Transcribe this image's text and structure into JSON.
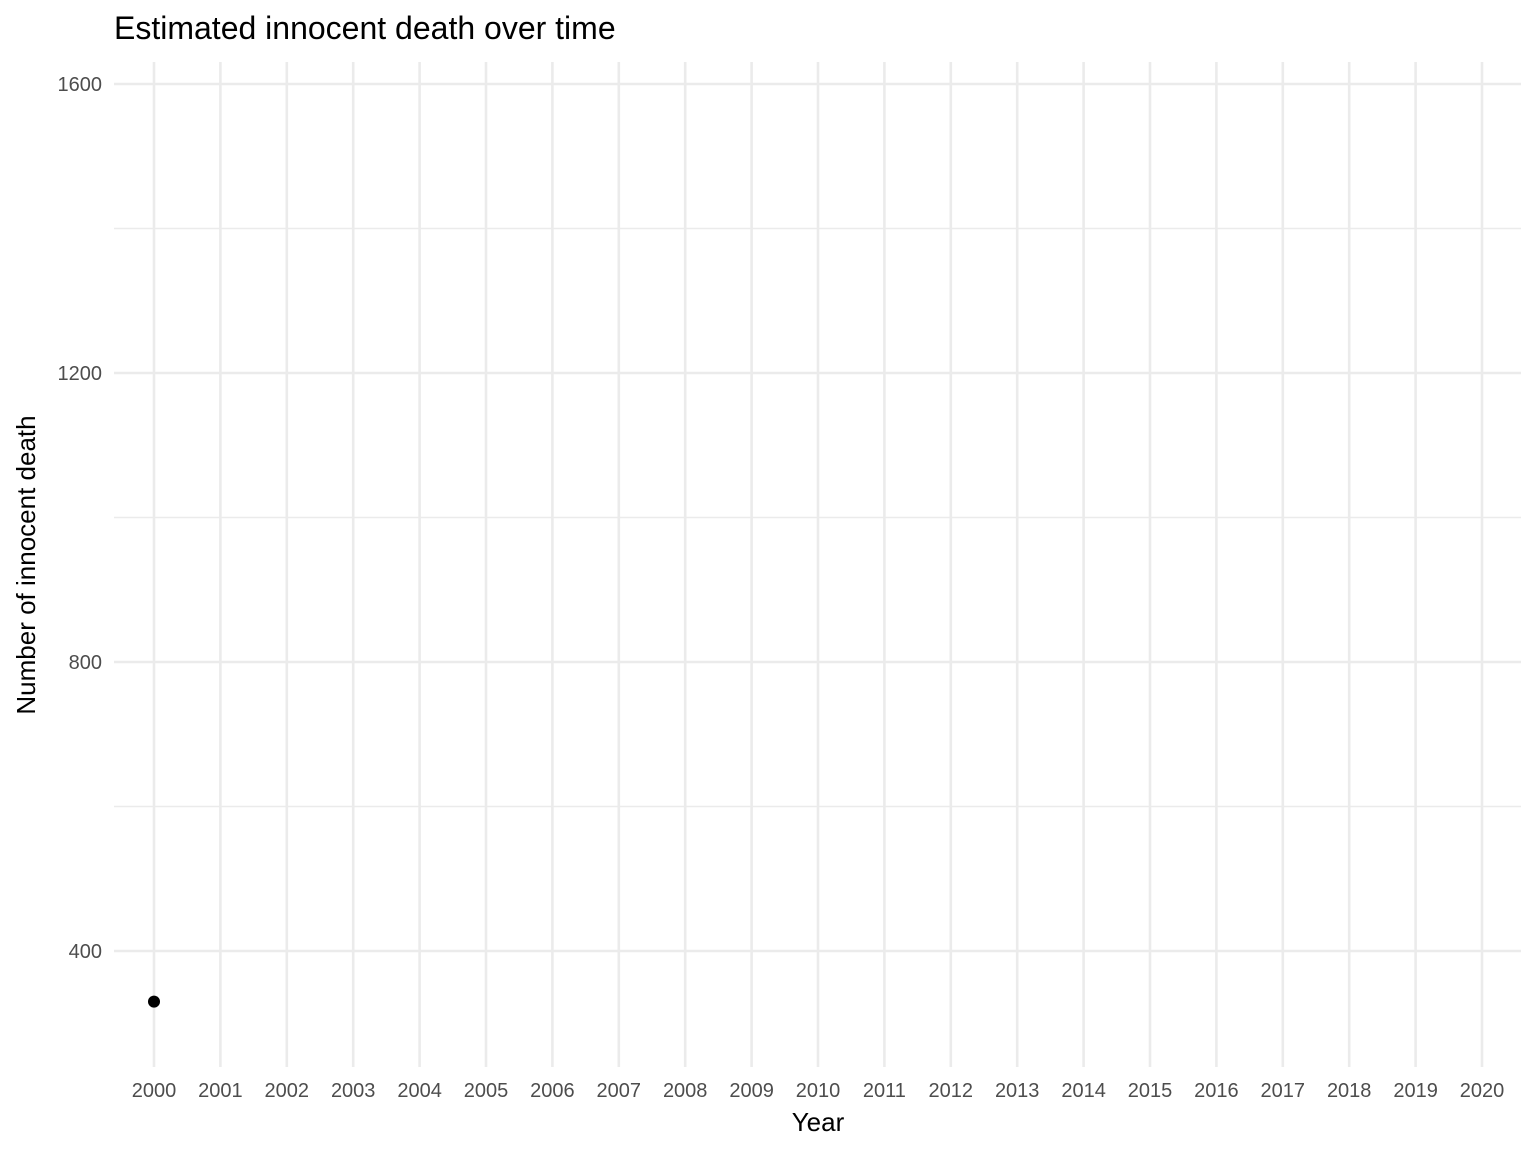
{
  "chart_data": {
    "type": "scatter",
    "title": "Estimated innocent death over time",
    "xlabel": "Year",
    "ylabel": "Number of innocent death",
    "x_ticks": [
      "2000",
      "2001",
      "2002",
      "2003",
      "2004",
      "2005",
      "2006",
      "2007",
      "2008",
      "2009",
      "2010",
      "2011",
      "2012",
      "2013",
      "2014",
      "2015",
      "2016",
      "2017",
      "2018",
      "2019",
      "2020"
    ],
    "y_ticks": [
      400,
      800,
      1200,
      1600
    ],
    "y_minor_ticks": [
      600,
      1000,
      1400
    ],
    "xlim": [
      2000,
      2020
    ],
    "ylim": [
      290,
      1630
    ],
    "grid": true,
    "legend": "none",
    "point_color": "#000000",
    "series": [
      {
        "x": [
          2000
        ],
        "y": [
          330
        ]
      }
    ]
  }
}
